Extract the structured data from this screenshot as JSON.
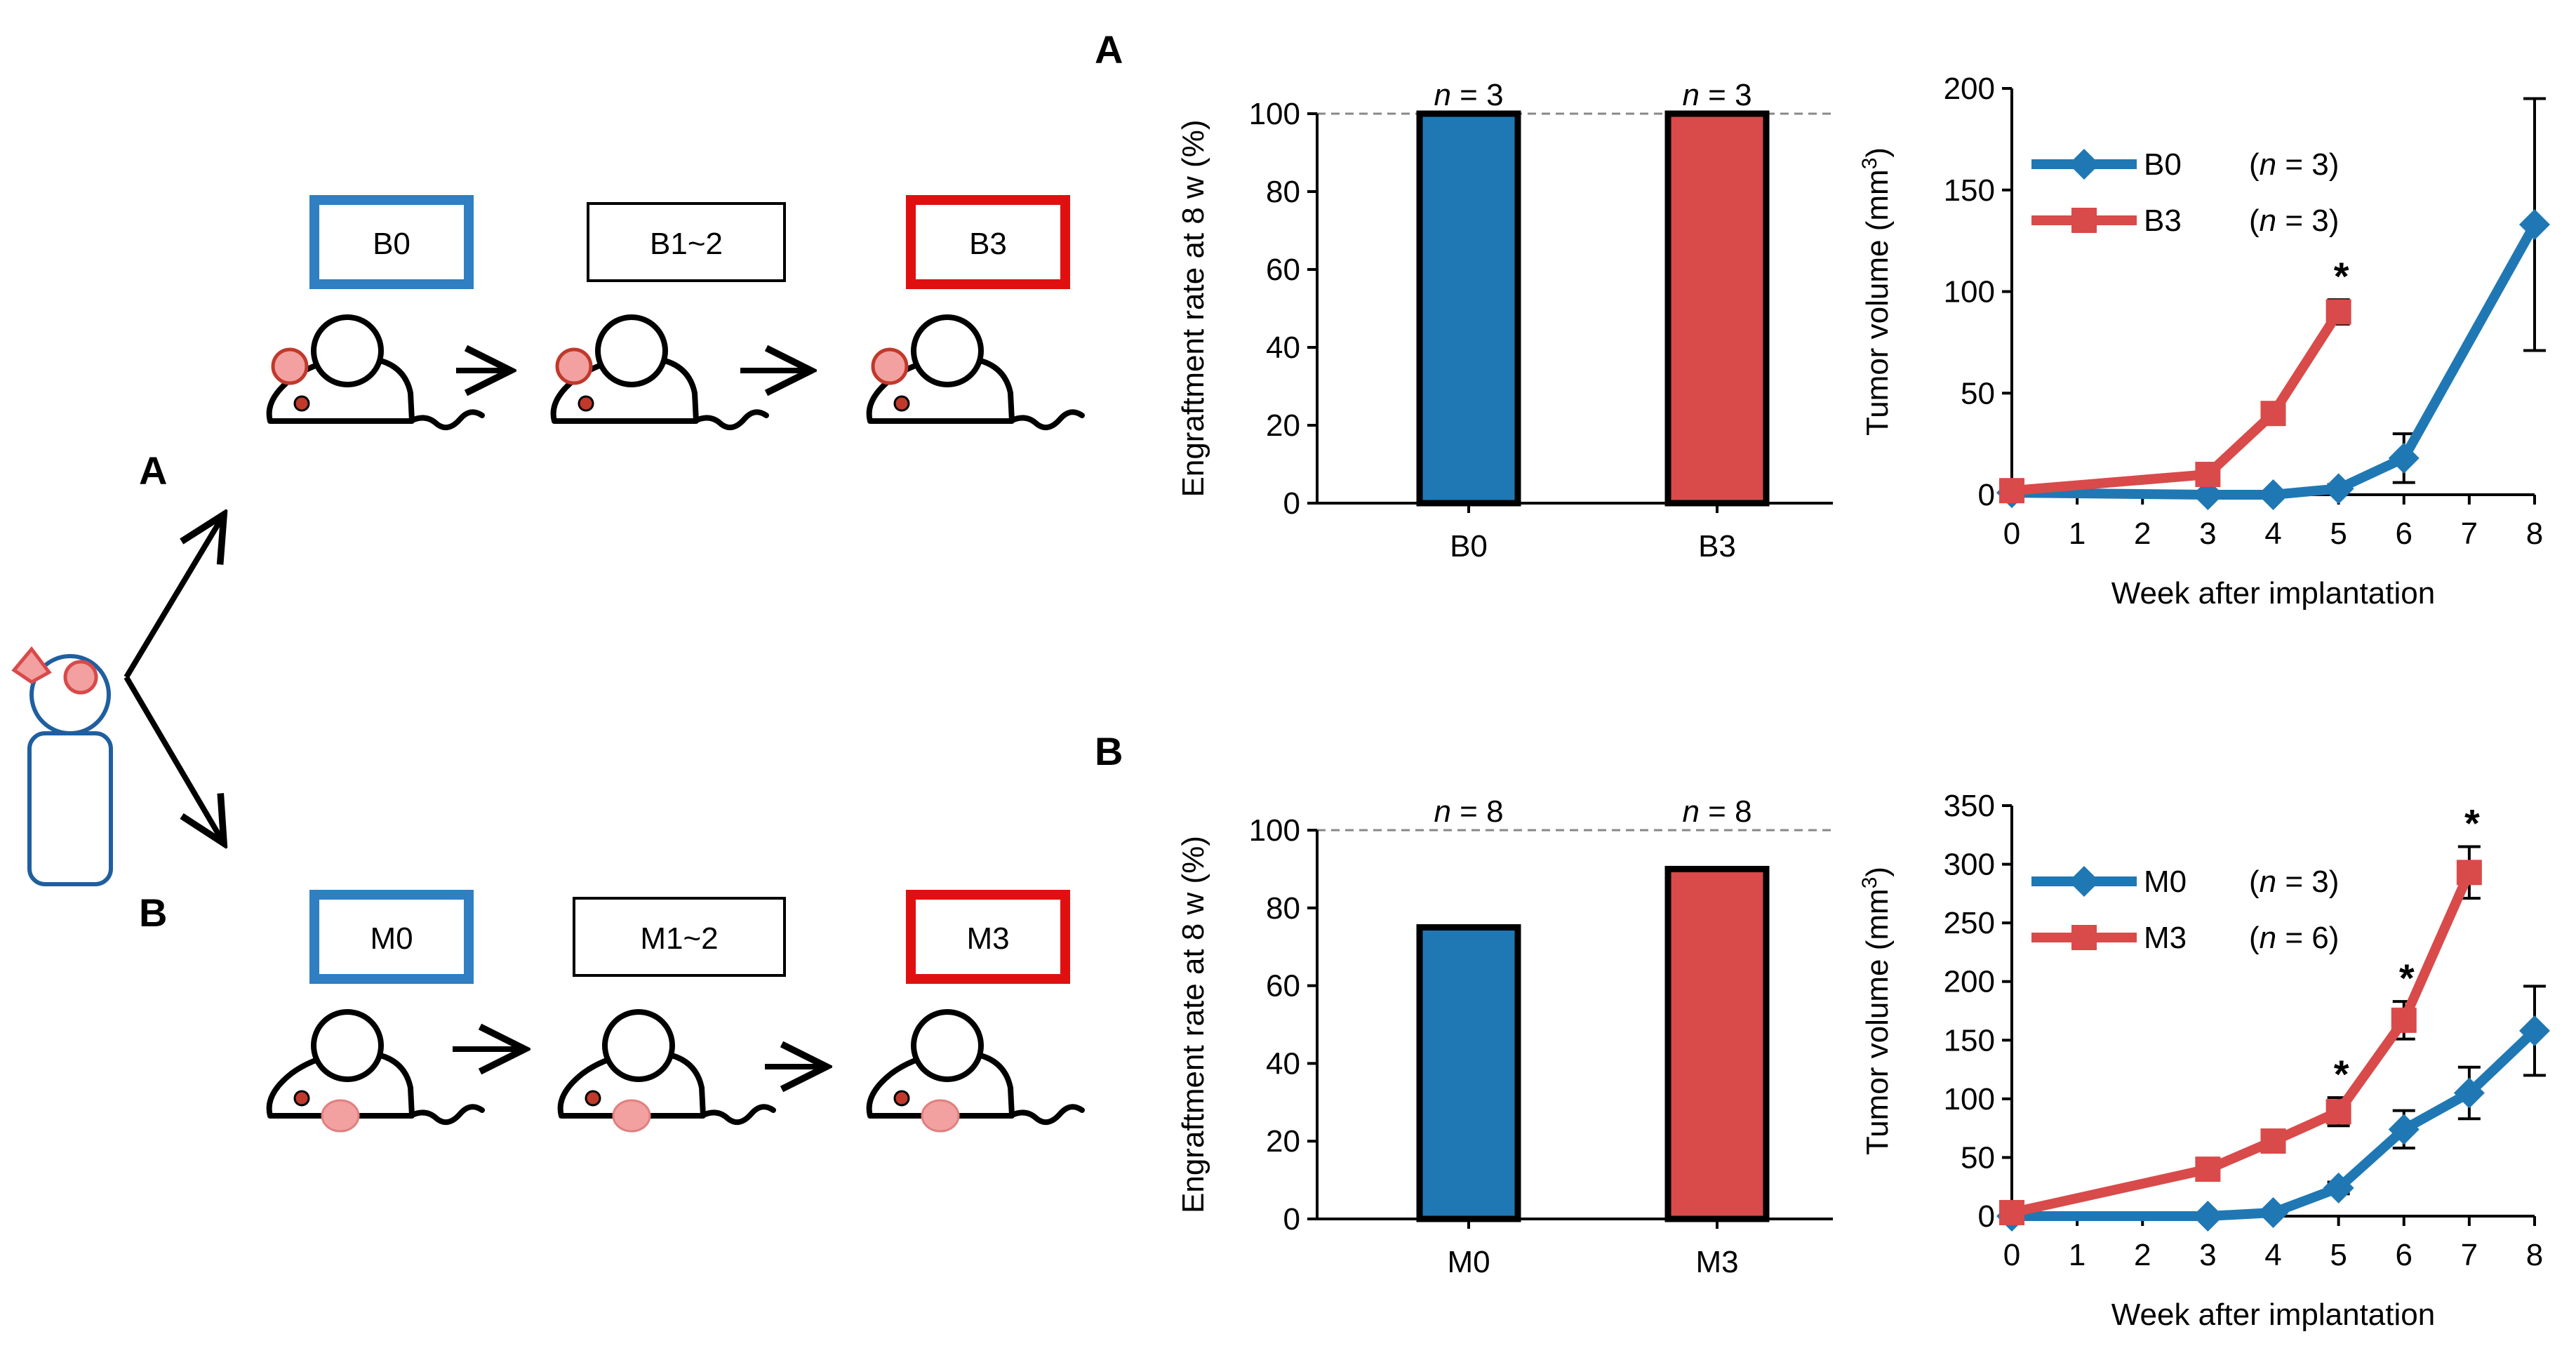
{
  "colors": {
    "baseline": "#1f78b4",
    "passage3": "#d94a4a",
    "passage3_box": "#e01010",
    "mouse_tumor": "#f2a0a0",
    "mouse_tumor_edge": "#c0392b"
  },
  "schematic": {
    "patient_icon": "patient-icon",
    "mouse_icon": "mouse-icon",
    "row_a": {
      "label": "A",
      "boxes": [
        "B0",
        "B1~2",
        "B3"
      ]
    },
    "row_b": {
      "label": "B",
      "boxes": [
        "M0",
        "M1~2",
        "M3"
      ]
    }
  },
  "chart_data": [
    {
      "panel": "A",
      "type": "bar",
      "categories": [
        "B0",
        "B3"
      ],
      "values": [
        100,
        100
      ],
      "n_labels": [
        "n = 3",
        "n = 3"
      ],
      "n_labels_parts": [
        {
          "n": "n",
          "eq": " = 3"
        },
        {
          "n": "n",
          "eq": " = 3"
        }
      ],
      "ylabel": "Engraftment rate at 8 w (%)",
      "ylim": [
        0,
        100
      ],
      "yticks": [
        0,
        20,
        40,
        60,
        80,
        100
      ],
      "reference_line": 100
    },
    {
      "panel": "A",
      "type": "line",
      "xlabel": "Week after implantation",
      "ylabel_text": "Tumor volume (mm",
      "ylabel_sup": "3",
      "ylabel_close": ")",
      "ylim": [
        0,
        200
      ],
      "yticks": [
        0,
        50,
        100,
        150,
        200
      ],
      "xticks": [
        0,
        1,
        2,
        3,
        4,
        5,
        6,
        7,
        8
      ],
      "series": [
        {
          "name": "B0",
          "n_label": "(n = 3)",
          "n_parts": {
            "open": "(",
            "n": "n",
            "eq": " = 3)"
          },
          "marker": "diamond",
          "x": [
            0,
            3,
            4,
            5,
            6,
            8
          ],
          "y": [
            1,
            0,
            0,
            3,
            18,
            133
          ],
          "err": [
            0,
            0,
            0,
            2,
            12,
            62
          ]
        },
        {
          "name": "B3",
          "n_label": "(n = 3)",
          "n_parts": {
            "open": "(",
            "n": "n",
            "eq": " = 3)"
          },
          "marker": "square",
          "x": [
            0,
            3,
            4,
            5
          ],
          "y": [
            2,
            10,
            40,
            90
          ],
          "err": [
            0,
            2,
            5,
            6
          ]
        }
      ],
      "significance": [
        {
          "x": 5,
          "label": "*"
        }
      ]
    },
    {
      "panel": "B",
      "type": "bar",
      "categories": [
        "M0",
        "M3"
      ],
      "values": [
        75,
        90
      ],
      "n_labels": [
        "n = 8",
        "n = 8"
      ],
      "n_labels_parts": [
        {
          "n": "n",
          "eq": " = 8"
        },
        {
          "n": "n",
          "eq": " = 8"
        }
      ],
      "ylabel": "Engraftment rate at 8 w (%)",
      "ylim": [
        0,
        100
      ],
      "yticks": [
        0,
        20,
        40,
        60,
        80,
        100
      ],
      "reference_line": 100
    },
    {
      "panel": "B",
      "type": "line",
      "xlabel": "Week after implantation",
      "ylabel_text": "Tumor volume (mm",
      "ylabel_sup": "3",
      "ylabel_close": ")",
      "ylim": [
        0,
        350
      ],
      "yticks": [
        0,
        50,
        100,
        150,
        200,
        250,
        300,
        350
      ],
      "xticks": [
        0,
        1,
        2,
        3,
        4,
        5,
        6,
        7,
        8
      ],
      "series": [
        {
          "name": "M0",
          "n_label": "(n = 3)",
          "n_parts": {
            "open": "(",
            "n": "n",
            "eq": " = 3)"
          },
          "marker": "diamond",
          "x": [
            0,
            3,
            4,
            5,
            6,
            7,
            8
          ],
          "y": [
            0,
            0,
            3,
            24,
            74,
            105,
            158
          ],
          "err": [
            0,
            0,
            0,
            5,
            16,
            22,
            38
          ]
        },
        {
          "name": "M3",
          "n_label": "(n = 6)",
          "n_parts": {
            "open": "(",
            "n": "n",
            "eq": " = 6)"
          },
          "marker": "square",
          "x": [
            0,
            3,
            4,
            5,
            6,
            7
          ],
          "y": [
            3,
            40,
            64,
            89,
            167,
            293
          ],
          "err": [
            0,
            3,
            5,
            12,
            16,
            22
          ]
        }
      ],
      "significance": [
        {
          "x": 5,
          "label": "*"
        },
        {
          "x": 6,
          "label": "*"
        },
        {
          "x": 7,
          "label": "*"
        }
      ]
    }
  ]
}
